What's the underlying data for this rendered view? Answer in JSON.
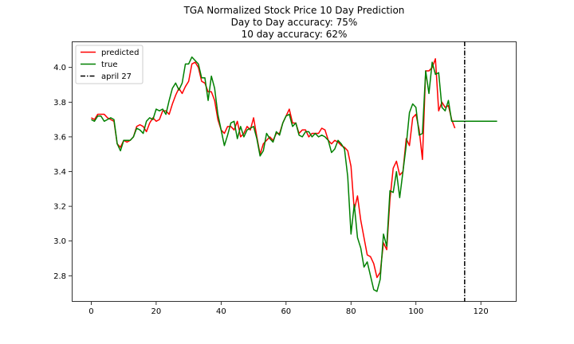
{
  "chart_data": {
    "type": "line",
    "title_lines": [
      "TGA Normalized Stock Price 10 Day Prediction",
      "Day to Day accuracy: 75%",
      "10 day accuracy: 62%"
    ],
    "xlabel": "",
    "ylabel": "",
    "xlim": [
      -6,
      131
    ],
    "ylim": [
      2.65,
      4.15
    ],
    "x_ticks": [
      0,
      20,
      40,
      60,
      80,
      100,
      120
    ],
    "y_ticks": [
      2.8,
      3.0,
      3.2,
      3.4,
      3.6,
      3.8,
      4.0
    ],
    "x_tick_labels": [
      "0",
      "20",
      "40",
      "60",
      "80",
      "100",
      "120"
    ],
    "y_tick_labels": [
      "2.8",
      "3.0",
      "3.2",
      "3.4",
      "3.6",
      "3.8",
      "4.0"
    ],
    "grid": false,
    "legend_position": "top-left",
    "series": [
      {
        "name": "predicted",
        "color": "#ff0000",
        "style": "solid",
        "x_start": 0,
        "values": [
          3.71,
          3.7,
          3.73,
          3.73,
          3.73,
          3.71,
          3.7,
          3.69,
          3.56,
          3.54,
          3.58,
          3.57,
          3.58,
          3.6,
          3.66,
          3.67,
          3.66,
          3.63,
          3.68,
          3.71,
          3.69,
          3.7,
          3.75,
          3.75,
          3.73,
          3.79,
          3.84,
          3.88,
          3.85,
          3.89,
          3.92,
          4.02,
          4.03,
          4.0,
          3.92,
          3.91,
          3.86,
          3.86,
          3.81,
          3.7,
          3.64,
          3.62,
          3.66,
          3.66,
          3.64,
          3.69,
          3.6,
          3.62,
          3.66,
          3.64,
          3.71,
          3.6,
          3.5,
          3.56,
          3.58,
          3.6,
          3.58,
          3.62,
          3.62,
          3.68,
          3.72,
          3.76,
          3.68,
          3.68,
          3.62,
          3.64,
          3.64,
          3.6,
          3.62,
          3.62,
          3.62,
          3.65,
          3.64,
          3.58,
          3.56,
          3.58,
          3.57,
          3.55,
          3.54,
          3.52,
          3.43,
          3.18,
          3.26,
          3.12,
          3.02,
          2.92,
          2.91,
          2.87,
          2.79,
          2.82,
          2.99,
          2.95,
          3.24,
          3.42,
          3.46,
          3.38,
          3.4,
          3.59,
          3.55,
          3.71,
          3.73,
          3.64,
          3.47,
          3.98,
          3.98,
          4.0,
          4.05,
          3.75,
          3.8,
          3.77,
          3.78,
          3.7,
          3.65
        ]
      },
      {
        "name": "true",
        "color": "#008000",
        "style": "solid",
        "x_start": 0,
        "values": [
          3.7,
          3.69,
          3.72,
          3.72,
          3.69,
          3.7,
          3.71,
          3.7,
          3.56,
          3.52,
          3.58,
          3.58,
          3.58,
          3.6,
          3.65,
          3.64,
          3.62,
          3.69,
          3.71,
          3.7,
          3.76,
          3.75,
          3.76,
          3.73,
          3.81,
          3.88,
          3.91,
          3.87,
          3.91,
          4.02,
          4.02,
          4.06,
          4.04,
          4.02,
          3.94,
          3.94,
          3.81,
          3.95,
          3.88,
          3.73,
          3.64,
          3.55,
          3.61,
          3.68,
          3.69,
          3.59,
          3.66,
          3.6,
          3.64,
          3.65,
          3.66,
          3.59,
          3.49,
          3.52,
          3.62,
          3.59,
          3.57,
          3.63,
          3.61,
          3.68,
          3.72,
          3.73,
          3.66,
          3.68,
          3.61,
          3.6,
          3.63,
          3.63,
          3.6,
          3.62,
          3.6,
          3.61,
          3.6,
          3.58,
          3.51,
          3.53,
          3.58,
          3.56,
          3.53,
          3.37,
          3.04,
          3.21,
          3.02,
          2.96,
          2.85,
          2.88,
          2.8,
          2.72,
          2.71,
          2.78,
          3.04,
          2.97,
          3.29,
          3.28,
          3.4,
          3.25,
          3.4,
          3.55,
          3.74,
          3.79,
          3.77,
          3.61,
          3.62,
          3.98,
          3.85,
          4.03,
          3.96,
          3.97,
          3.77,
          3.75,
          3.81,
          3.69,
          3.69,
          3.69,
          3.69,
          3.69,
          3.69,
          3.69,
          3.69,
          3.69,
          3.69,
          3.69,
          3.69,
          3.69,
          3.69,
          3.69
        ]
      }
    ],
    "vlines": [
      {
        "name": "april 27",
        "x": 115,
        "color": "#000000",
        "style": "dashdot"
      }
    ]
  }
}
